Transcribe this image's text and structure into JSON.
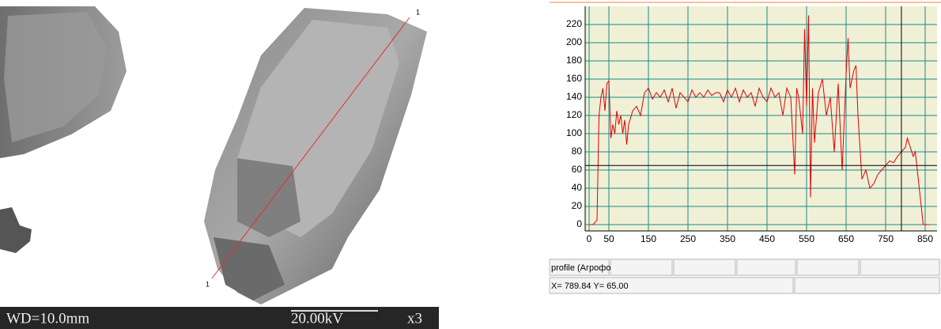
{
  "sem": {
    "labels": [
      "1",
      "1"
    ],
    "footer": {
      "wd": "WD=10.0mm",
      "kv": "20.00kV",
      "mag": "x3"
    }
  },
  "chart_data": {
    "type": "line",
    "color": "#e00000",
    "x": [
      0,
      10,
      20,
      25,
      30,
      35,
      40,
      45,
      50,
      55,
      60,
      65,
      70,
      75,
      80,
      85,
      90,
      95,
      100,
      110,
      120,
      130,
      140,
      150,
      160,
      170,
      180,
      190,
      200,
      210,
      220,
      230,
      240,
      250,
      260,
      270,
      280,
      290,
      300,
      310,
      320,
      330,
      340,
      350,
      360,
      370,
      380,
      390,
      400,
      410,
      420,
      430,
      440,
      450,
      460,
      470,
      480,
      490,
      500,
      510,
      520,
      525,
      530,
      540,
      545,
      550,
      555,
      560,
      565,
      570,
      580,
      590,
      600,
      610,
      620,
      630,
      640,
      650,
      655,
      660,
      670,
      675,
      680,
      690,
      700,
      710,
      720,
      730,
      740,
      750,
      760,
      770,
      780,
      790,
      800,
      805,
      810,
      820,
      825,
      835,
      845,
      860
    ],
    "values": [
      0,
      0,
      5,
      120,
      140,
      150,
      125,
      155,
      158,
      95,
      110,
      100,
      125,
      110,
      120,
      100,
      115,
      88,
      110,
      125,
      130,
      120,
      145,
      150,
      138,
      145,
      140,
      148,
      135,
      150,
      128,
      145,
      140,
      135,
      148,
      140,
      145,
      140,
      148,
      142,
      145,
      145,
      135,
      148,
      140,
      150,
      135,
      148,
      140,
      145,
      130,
      150,
      140,
      135,
      150,
      140,
      145,
      120,
      150,
      140,
      55,
      150,
      140,
      100,
      215,
      130,
      230,
      30,
      150,
      90,
      145,
      160,
      120,
      140,
      80,
      155,
      60,
      165,
      205,
      150,
      170,
      175,
      120,
      50,
      60,
      40,
      45,
      55,
      60,
      65,
      70,
      68,
      75,
      80,
      85,
      95,
      88,
      75,
      80,
      40,
      0,
      0
    ],
    "xlim": [
      -10,
      880
    ],
    "ylim": [
      -7,
      240
    ],
    "xticks": [
      0,
      50,
      150,
      250,
      350,
      450,
      550,
      650,
      750,
      850
    ],
    "yticks": [
      0,
      20,
      40,
      60,
      80,
      100,
      120,
      140,
      160,
      180,
      200,
      220
    ],
    "grid": true,
    "cursor": {
      "x": 789.84,
      "y": 65
    }
  },
  "status": {
    "profile": "profile (Агрофо",
    "coords": "X= 789.84  Y= 65.00"
  }
}
